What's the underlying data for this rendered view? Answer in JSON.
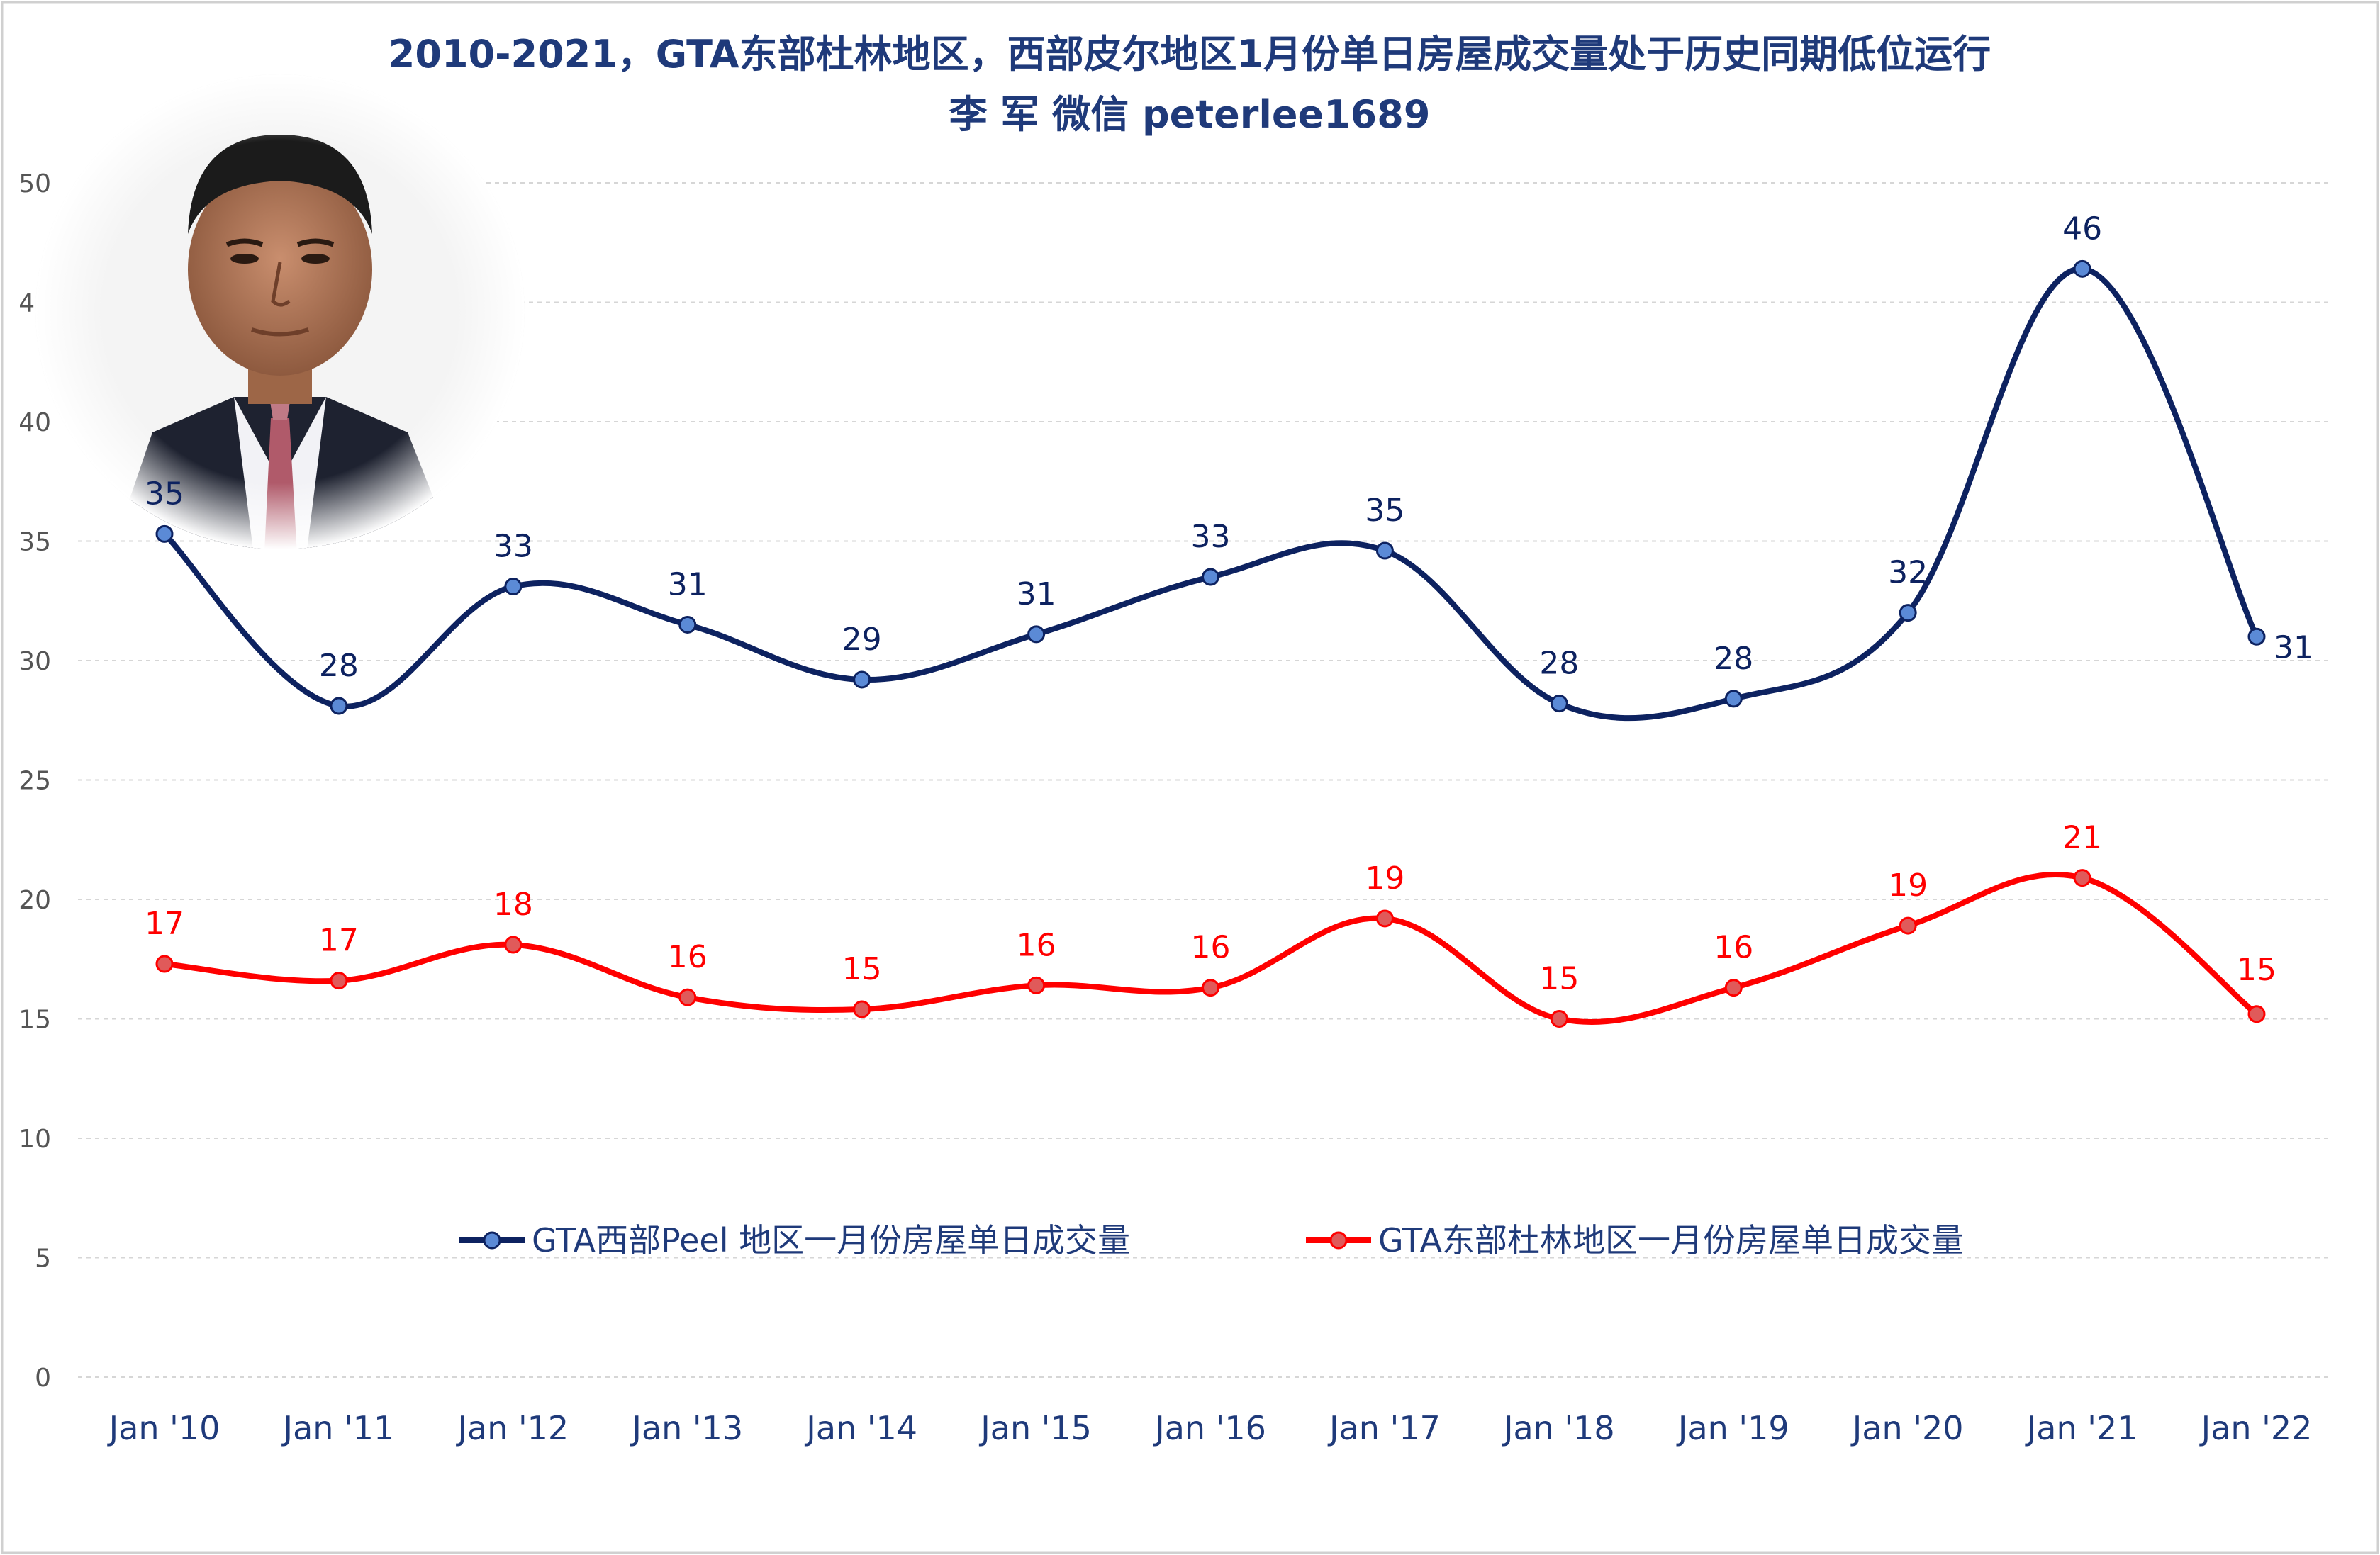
{
  "chart_data": {
    "type": "line",
    "title": "2010-2021，GTA东部杜林地区，西部皮尔地区1月份单日房屋成交量处于历史同期低位运行",
    "subtitle": "李 军  微信  peterlee1689",
    "categories": [
      "Jan '10",
      "Jan '11",
      "Jan '12",
      "Jan '13",
      "Jan '14",
      "Jan '15",
      "Jan '16",
      "Jan '17",
      "Jan '18",
      "Jan '19",
      "Jan '20",
      "Jan '21",
      "Jan '22"
    ],
    "ylim": [
      0,
      50
    ],
    "yticks": [
      0,
      5,
      10,
      15,
      20,
      25,
      30,
      35,
      40,
      45,
      50
    ],
    "grid": "horizontal dashed",
    "legend_position": "lower-middle inside plot",
    "series": [
      {
        "name": "GTA西部Peel 地区一月份房屋单日成交量",
        "color": "#0d2260",
        "marker_color": "#5b8ad6",
        "values": [
          35.3,
          28.1,
          33.1,
          31.5,
          29.2,
          31.1,
          33.5,
          34.6,
          28.2,
          28.4,
          32.0,
          46.4,
          31.0
        ],
        "labels": [
          "35",
          "28",
          "33",
          "31",
          "29",
          "31",
          "33",
          "35",
          "28",
          "28",
          "32",
          "46",
          "31"
        ]
      },
      {
        "name": "GTA东部杜林地区一月份房屋单日成交量",
        "color": "#ff0000",
        "marker_color": "#e05a5a",
        "values": [
          17.3,
          16.6,
          18.1,
          15.9,
          15.4,
          16.4,
          16.3,
          19.2,
          15.0,
          16.3,
          18.9,
          20.9,
          15.2
        ],
        "labels": [
          "17",
          "17",
          "18",
          "16",
          "15",
          "16",
          "16",
          "19",
          "15",
          "16",
          "19",
          "21",
          "15"
        ]
      }
    ]
  },
  "photo": {
    "description_icon": "portrait-photo"
  }
}
